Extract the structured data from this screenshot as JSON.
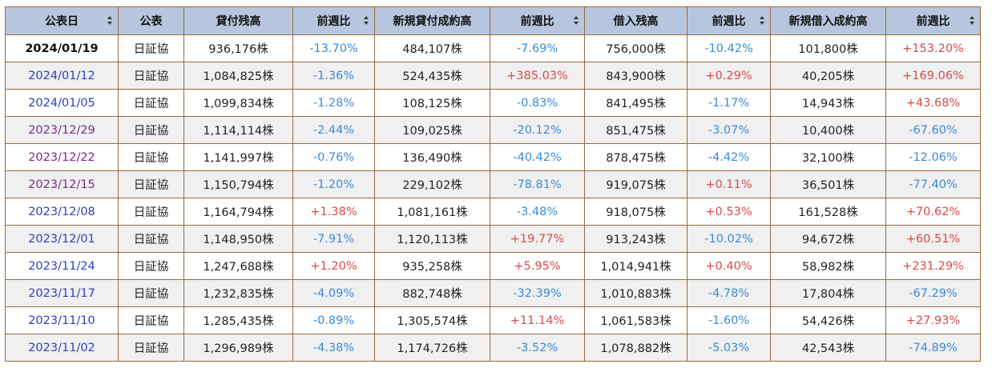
{
  "headers": [
    "公表日",
    "公表",
    "貸付残高",
    "前週比",
    "新規貸付成約高",
    "前週比",
    "借入残高",
    "前週比",
    "新規借入成約高",
    "前週比"
  ],
  "rows": [
    {
      "date": "2024/01/19",
      "pub": "日証協",
      "loan_balance": "936,176株",
      "loan_balance_chg": "-13.70%",
      "new_loan": "484,107株",
      "new_loan_chg": "-7.69%",
      "borrow_balance": "756,000株",
      "borrow_balance_chg": "-10.42%",
      "new_borrow": "101,800株",
      "new_borrow_chg": "+153.20%"
    },
    {
      "date": "2024/01/12",
      "pub": "日証協",
      "loan_balance": "1,084,825株",
      "loan_balance_chg": "-1.36%",
      "new_loan": "524,435株",
      "new_loan_chg": "+385.03%",
      "borrow_balance": "843,900株",
      "borrow_balance_chg": "+0.29%",
      "new_borrow": "40,205株",
      "new_borrow_chg": "+169.06%"
    },
    {
      "date": "2024/01/05",
      "pub": "日証協",
      "loan_balance": "1,099,834株",
      "loan_balance_chg": "-1.28%",
      "new_loan": "108,125株",
      "new_loan_chg": "-0.83%",
      "borrow_balance": "841,495株",
      "borrow_balance_chg": "-1.17%",
      "new_borrow": "14,943株",
      "new_borrow_chg": "+43.68%"
    },
    {
      "date": "2023/12/29",
      "pub": "日証協",
      "loan_balance": "1,114,114株",
      "loan_balance_chg": "-2.44%",
      "new_loan": "109,025株",
      "new_loan_chg": "-20.12%",
      "borrow_balance": "851,475株",
      "borrow_balance_chg": "-3.07%",
      "new_borrow": "10,400株",
      "new_borrow_chg": "-67.60%"
    },
    {
      "date": "2023/12/22",
      "pub": "日証協",
      "loan_balance": "1,141,997株",
      "loan_balance_chg": "-0.76%",
      "new_loan": "136,490株",
      "new_loan_chg": "-40.42%",
      "borrow_balance": "878,475株",
      "borrow_balance_chg": "-4.42%",
      "new_borrow": "32,100株",
      "new_borrow_chg": "-12.06%"
    },
    {
      "date": "2023/12/15",
      "pub": "日証協",
      "loan_balance": "1,150,794株",
      "loan_balance_chg": "-1.20%",
      "new_loan": "229,102株",
      "new_loan_chg": "-78.81%",
      "borrow_balance": "919,075株",
      "borrow_balance_chg": "+0.11%",
      "new_borrow": "36,501株",
      "new_borrow_chg": "-77.40%"
    },
    {
      "date": "2023/12/08",
      "pub": "日証協",
      "loan_balance": "1,164,794株",
      "loan_balance_chg": "+1.38%",
      "new_loan": "1,081,161株",
      "new_loan_chg": "-3.48%",
      "borrow_balance": "918,075株",
      "borrow_balance_chg": "+0.53%",
      "new_borrow": "161,528株",
      "new_borrow_chg": "+70.62%"
    },
    {
      "date": "2023/12/01",
      "pub": "日証協",
      "loan_balance": "1,148,950株",
      "loan_balance_chg": "-7.91%",
      "new_loan": "1,120,113株",
      "new_loan_chg": "+19.77%",
      "borrow_balance": "913,243株",
      "borrow_balance_chg": "-10.02%",
      "new_borrow": "94,672株",
      "new_borrow_chg": "+60.51%"
    },
    {
      "date": "2023/11/24",
      "pub": "日証協",
      "loan_balance": "1,247,688株",
      "loan_balance_chg": "+1.20%",
      "new_loan": "935,258株",
      "new_loan_chg": "+5.95%",
      "borrow_balance": "1,014,941株",
      "borrow_balance_chg": "+0.40%",
      "new_borrow": "58,982株",
      "new_borrow_chg": "+231.29%"
    },
    {
      "date": "2023/11/17",
      "pub": "日証協",
      "loan_balance": "1,232,835株",
      "loan_balance_chg": "-4.09%",
      "new_loan": "882,748株",
      "new_loan_chg": "-32.39%",
      "borrow_balance": "1,010,883株",
      "borrow_balance_chg": "-4.78%",
      "new_borrow": "17,804株",
      "new_borrow_chg": "-67.29%"
    },
    {
      "date": "2023/11/10",
      "pub": "日証協",
      "loan_balance": "1,285,435株",
      "loan_balance_chg": "-0.89%",
      "new_loan": "1,305,574株",
      "new_loan_chg": "+11.14%",
      "borrow_balance": "1,061,583株",
      "borrow_balance_chg": "-1.60%",
      "new_borrow": "54,426株",
      "new_borrow_chg": "+27.93%"
    },
    {
      "date": "2023/11/02",
      "pub": "日証協",
      "loan_balance": "1,296,989株",
      "loan_balance_chg": "-4.38%",
      "new_loan": "1,174,726株",
      "new_loan_chg": "-3.52%",
      "borrow_balance": "1,078,882株",
      "borrow_balance_chg": "-5.03%",
      "new_borrow": "42,543株",
      "new_borrow_chg": "-74.89%"
    }
  ],
  "colors": {
    "header_bg": "#b7c6de",
    "border": "#9c6a3a",
    "negative": "#3b8ad9",
    "positive": "#d84a4a",
    "date_link": "#2a3fc4",
    "date_link_visited": "#7a2b8c"
  }
}
